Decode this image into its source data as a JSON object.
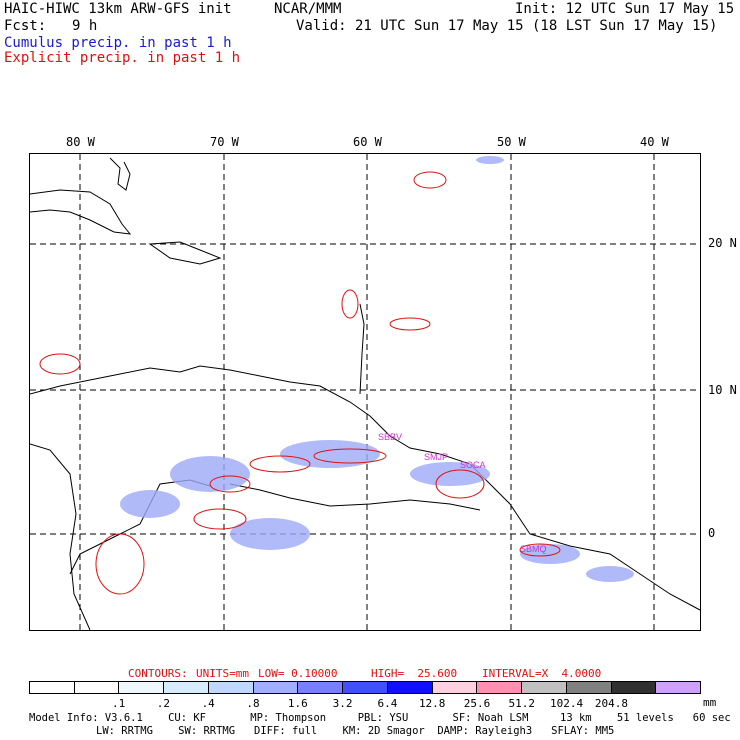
{
  "header": {
    "title": "HAIC-HIWC 13km ARW-GFS init",
    "org": "NCAR/MMM",
    "init": "Init: 12 UTC Sun 17 May 15",
    "fcst_label": "Fcst:",
    "fcst_value": "9 h",
    "valid": "Valid: 21 UTC Sun 17 May 15 (18 LST Sun 17 May 15)",
    "line2": "Cumulus precip. in past 1 h",
    "line3": "Explicit precip. in past 1 h"
  },
  "map": {
    "lon_labels": [
      "80 W",
      "70 W",
      "60 W",
      "50 W",
      "40 W"
    ],
    "lat_labels": [
      "20 N",
      "10 N",
      "0"
    ],
    "station_labels": [
      "SBBV",
      "SMJP",
      "SOCA",
      "SBMQ"
    ],
    "colors": {
      "cumulus": "#4a5cf0",
      "explicit": "#e01010",
      "station": "#d030d0",
      "grid": "#000000"
    }
  },
  "contours": {
    "label": "CONTOURS:",
    "units": "UNITS=mm",
    "low": "LOW= 0.10000",
    "high": "HIGH=  25.600",
    "interval": "INTERVAL=X  4.0000"
  },
  "colorbar": {
    "colors": [
      "#ffffff",
      "#ffffff",
      "#f0f8ff",
      "#d8ecff",
      "#c0d8ff",
      "#a0b0ff",
      "#7880ff",
      "#4050ff",
      "#1010ff",
      "#ffd0e0",
      "#ff90b0",
      "#c0c0c0",
      "#808080",
      "#303030",
      "#d0a0ff"
    ],
    "ticks": [
      ".1",
      ".2",
      ".4",
      ".8",
      "1.6",
      "3.2",
      "6.4",
      "12.8",
      "25.6",
      "51.2",
      "102.4",
      "204.8"
    ],
    "unit": "mm"
  },
  "model_info": {
    "line1": "Model Info: V3.6.1    CU: KF       MP: Thompson     PBL: YSU       SF: Noah LSM     13 km    51 levels   60 sec",
    "line2": "LW: RRTMG    SW: RRTMG   DIFF: full    KM: 2D Smagor  DAMP: Rayleigh3   SFLAY: MM5"
  }
}
